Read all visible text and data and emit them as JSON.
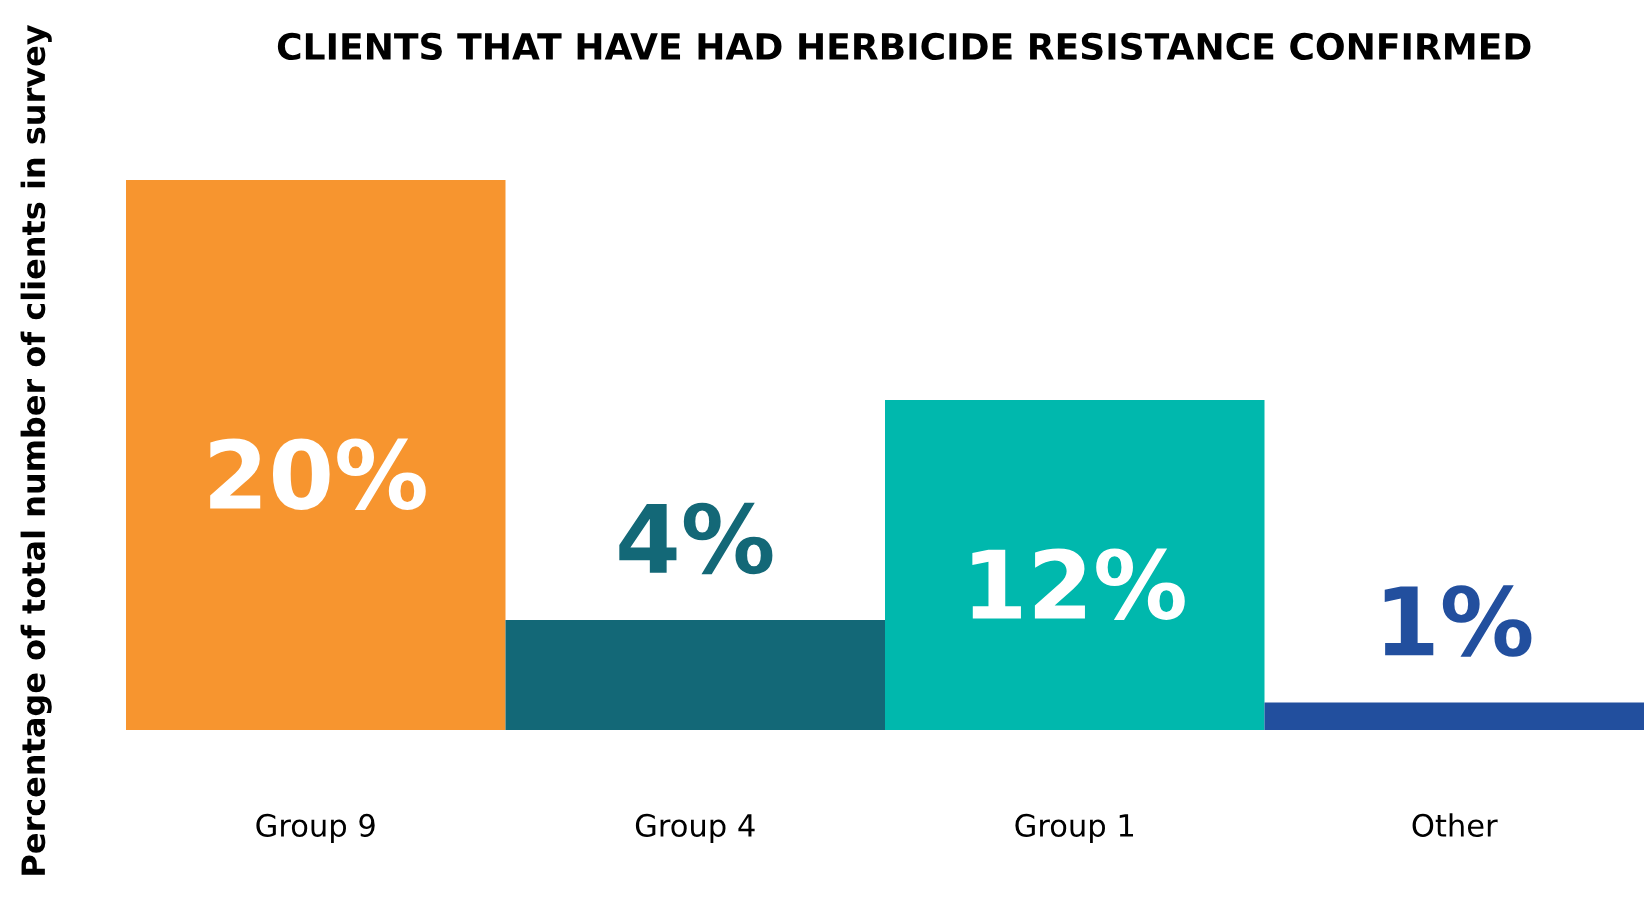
{
  "chart_data": {
    "type": "bar",
    "title": "CLIENTS THAT HAVE HAD HERBICIDE RESISTANCE CONFIRMED",
    "ylabel": "Percentage of total number of clients in survey",
    "categories": [
      "Group 9",
      "Group 4",
      "Group 1",
      "Other"
    ],
    "values": [
      20,
      4,
      12,
      1
    ],
    "value_labels": [
      "20%",
      "4%",
      "12%",
      "1%"
    ],
    "colors": [
      "#f7952f",
      "#136877",
      "#00b8ad",
      "#224f9e"
    ],
    "tick_labels": "x",
    "grid": false,
    "legend": false
  }
}
